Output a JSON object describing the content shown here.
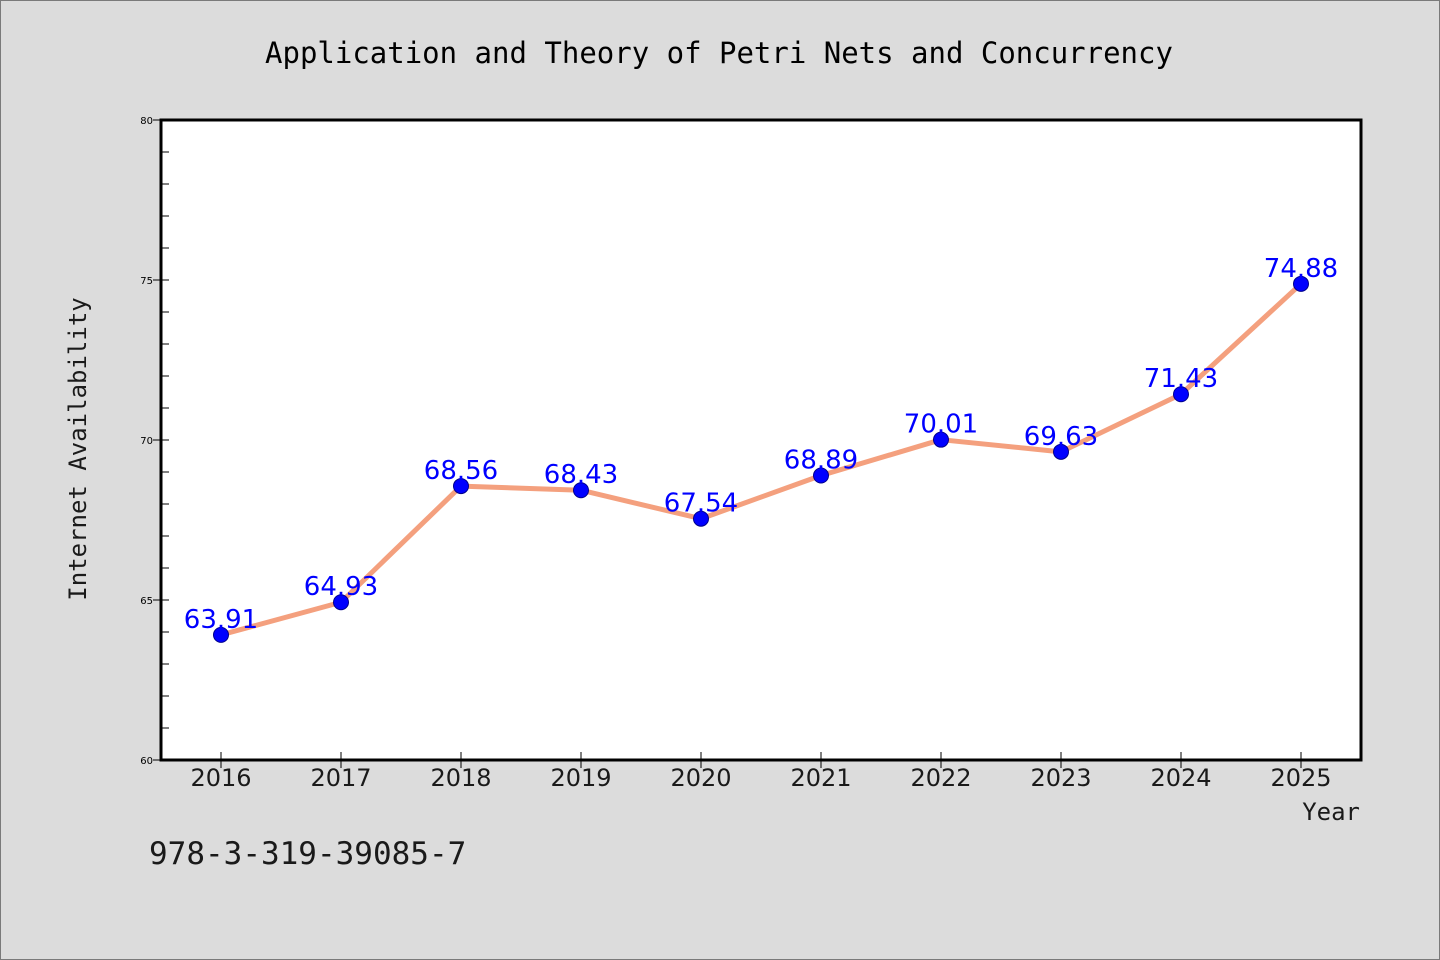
{
  "chart_data": {
    "type": "line",
    "title": "Application and Theory of Petri Nets and Concurrency",
    "xlabel": "Year",
    "ylabel": "Internet Availability",
    "categories": [
      "2016",
      "2017",
      "2018",
      "2019",
      "2020",
      "2021",
      "2022",
      "2023",
      "2024",
      "2025"
    ],
    "series": [
      {
        "values": [
          63.91,
          64.93,
          68.56,
          68.43,
          67.54,
          68.89,
          70.01,
          69.63,
          71.43,
          74.88
        ],
        "data_labels": [
          "63.91",
          "64.93",
          "68.56",
          "68.43",
          "67.54",
          "68.89",
          "70.01",
          "69.63",
          "71.43",
          "74.88"
        ]
      }
    ],
    "ylim": [
      60,
      80
    ],
    "yticks": [
      60,
      65,
      70,
      75,
      80
    ],
    "ytick_labels": [
      "60",
      "65",
      "70",
      "75",
      "80"
    ],
    "grid": false,
    "legend": "none",
    "colors": {
      "line": "#f4a07e",
      "marker": "#0000ff",
      "marker_edge": "#00008b",
      "data_label": "#0000ff",
      "figure_background": "#dcdcdc",
      "plot_background": "#ffffff"
    },
    "footer": "978-3-319-39085-7"
  }
}
